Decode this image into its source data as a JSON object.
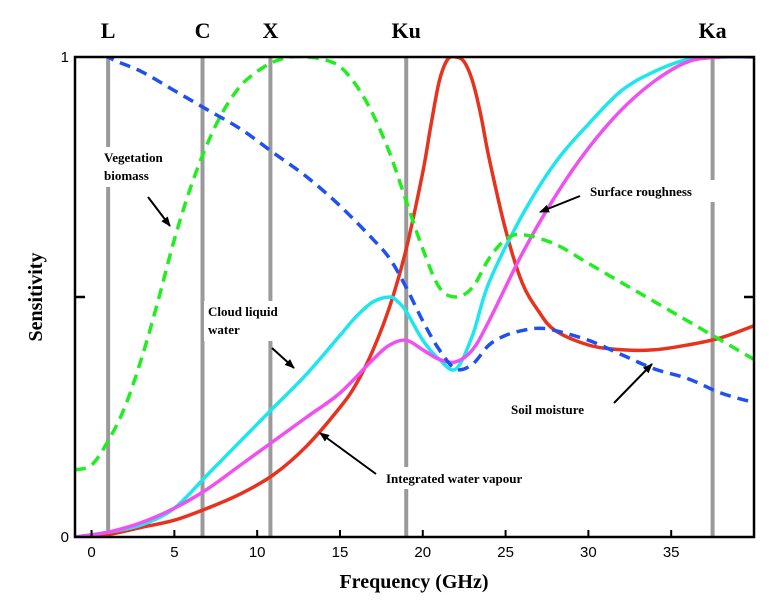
{
  "chart_data": {
    "type": "line",
    "xlabel": "Frequency (GHz)",
    "ylabel": "Sensitivity",
    "xlim": [
      -1,
      40
    ],
    "ylim": [
      0,
      1
    ],
    "xticks": [
      0,
      5,
      10,
      15,
      20,
      25,
      30,
      35
    ],
    "yticks": [
      0,
      1
    ],
    "yticks_unlabeled": [
      0.5
    ],
    "grid": false,
    "legend": "none",
    "bands": [
      {
        "label": "L",
        "x": 1.0
      },
      {
        "label": "C",
        "x": 6.7
      },
      {
        "label": "X",
        "x": 10.8
      },
      {
        "label": "Ku",
        "x": 19.0
      },
      {
        "label": "Ka",
        "x": 37.5
      }
    ],
    "series": [
      {
        "name": "Integrated water vapour",
        "color": "#e8321e",
        "dash": "solid",
        "x": [
          -1,
          1,
          3,
          5,
          7,
          9,
          11,
          13,
          15,
          16,
          17,
          18,
          19,
          20,
          20.5,
          21,
          21.5,
          22,
          22.5,
          23,
          23.5,
          24,
          25,
          26,
          27,
          28,
          30,
          32,
          34,
          36,
          38,
          40
        ],
        "y": [
          0.0,
          0.005,
          0.02,
          0.035,
          0.06,
          0.09,
          0.13,
          0.19,
          0.27,
          0.32,
          0.39,
          0.48,
          0.6,
          0.76,
          0.86,
          0.95,
          0.995,
          1.0,
          0.99,
          0.95,
          0.88,
          0.79,
          0.64,
          0.53,
          0.47,
          0.43,
          0.4,
          0.39,
          0.39,
          0.4,
          0.415,
          0.44
        ]
      },
      {
        "name": "Cloud liquid water",
        "color": "#1ee6f0",
        "dash": "solid",
        "x": [
          -1,
          1,
          3,
          5,
          7,
          9,
          11,
          13,
          15,
          16,
          17,
          18,
          18.5,
          19,
          20,
          21,
          22,
          23,
          24,
          26,
          28,
          30,
          32,
          34,
          36,
          38,
          40
        ],
        "y": [
          0.0,
          0.01,
          0.025,
          0.06,
          0.13,
          0.2,
          0.27,
          0.34,
          0.42,
          0.46,
          0.49,
          0.5,
          0.49,
          0.47,
          0.41,
          0.37,
          0.35,
          0.42,
          0.53,
          0.67,
          0.78,
          0.86,
          0.93,
          0.97,
          0.995,
          1.0,
          1.0
        ]
      },
      {
        "name": "Surface roughness",
        "color": "#f050f0",
        "dash": "solid",
        "x": [
          -1,
          1,
          3,
          5,
          7,
          9,
          11,
          13,
          15,
          17,
          18,
          19,
          20,
          21,
          22,
          23,
          24,
          26,
          28,
          30,
          32,
          34,
          36,
          38,
          40
        ],
        "y": [
          0.0,
          0.01,
          0.03,
          0.06,
          0.1,
          0.15,
          0.2,
          0.25,
          0.3,
          0.37,
          0.4,
          0.41,
          0.39,
          0.37,
          0.365,
          0.39,
          0.45,
          0.59,
          0.71,
          0.81,
          0.89,
          0.95,
          0.99,
          1.0,
          1.0
        ]
      },
      {
        "name": "Vegetation biomass",
        "color": "#20ee20",
        "dash": "dashed",
        "x": [
          -1,
          0,
          1,
          2,
          3,
          4,
          5,
          6,
          7,
          8,
          9,
          10,
          11,
          12,
          13,
          14,
          15,
          16,
          17,
          18,
          19,
          20,
          21,
          22,
          23,
          24,
          25,
          26,
          28,
          30,
          32,
          34,
          36,
          38,
          40
        ],
        "y": [
          0.14,
          0.15,
          0.2,
          0.27,
          0.37,
          0.49,
          0.62,
          0.73,
          0.82,
          0.89,
          0.94,
          0.97,
          0.99,
          1.0,
          1.0,
          0.995,
          0.98,
          0.94,
          0.88,
          0.8,
          0.7,
          0.6,
          0.52,
          0.5,
          0.52,
          0.58,
          0.62,
          0.63,
          0.61,
          0.57,
          0.53,
          0.49,
          0.45,
          0.41,
          0.37
        ]
      },
      {
        "name": "Soil moisture",
        "color": "#2050f0",
        "dash": "dashed",
        "x": [
          -1,
          1,
          3,
          5,
          7,
          9,
          11,
          13,
          15,
          17,
          18,
          19,
          20,
          21,
          22,
          23,
          24,
          25,
          26,
          27,
          28,
          30,
          32,
          34,
          36,
          38,
          40
        ],
        "y": [
          1.05,
          1.0,
          0.97,
          0.93,
          0.89,
          0.85,
          0.8,
          0.75,
          0.69,
          0.62,
          0.58,
          0.52,
          0.45,
          0.39,
          0.35,
          0.36,
          0.4,
          0.42,
          0.43,
          0.435,
          0.43,
          0.41,
          0.38,
          0.35,
          0.33,
          0.3,
          0.28
        ]
      }
    ],
    "annotations": [
      {
        "lines": [
          "Vegetation",
          "biomass"
        ]
      },
      {
        "lines": [
          "Surface roughness"
        ]
      },
      {
        "lines": [
          "Cloud liquid",
          "water"
        ]
      },
      {
        "lines": [
          "Soil moisture"
        ]
      },
      {
        "lines": [
          "Integrated water vapour"
        ]
      }
    ]
  }
}
